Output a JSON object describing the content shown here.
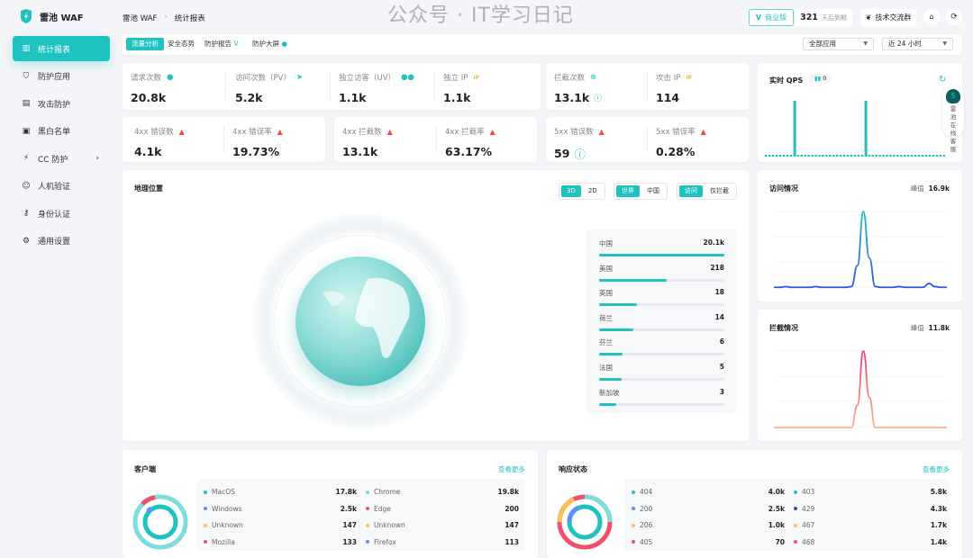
{
  "app": {
    "name": "雷池 WAF",
    "accent": "#1ec3bf"
  },
  "breadcrumb": [
    "雷池 WAF",
    "统计报表"
  ],
  "header": {
    "edition": "商业版",
    "days": "321",
    "days_label": "天后到期",
    "group": "技术交流群"
  },
  "sidebar": {
    "items": [
      {
        "label": "统计报表",
        "icon": "bar-chart-icon",
        "active": true
      },
      {
        "label": "防护应用",
        "icon": "shield-icon"
      },
      {
        "label": "攻击防护",
        "icon": "document-icon"
      },
      {
        "label": "黑白名单",
        "icon": "list-icon"
      },
      {
        "label": "CC 防护",
        "icon": "cc-icon"
      },
      {
        "label": "人机验证",
        "icon": "robot-icon"
      },
      {
        "label": "身份认证",
        "icon": "key-icon"
      },
      {
        "label": "通用设置",
        "icon": "gear-icon"
      }
    ]
  },
  "tabs": [
    "流量分析",
    "安全态势",
    "防护报告",
    "防护大屏"
  ],
  "filters": {
    "app": "全部应用",
    "range": "近 24 小时"
  },
  "stats": {
    "requests": {
      "label": "请求次数",
      "value": "20.8k"
    },
    "pv": {
      "label": "访问次数（PV）",
      "value": "5.2k"
    },
    "uv": {
      "label": "独立访客（UV）",
      "value": "1.1k"
    },
    "ip": {
      "label": "独立 IP",
      "value": "1.1k"
    },
    "blocked": {
      "label": "拦截次数",
      "value": "13.1k"
    },
    "attack_ip": {
      "label": "攻击 IP",
      "value": "114"
    },
    "e4xx": {
      "label": "4xx 错误数",
      "value": "4.1k"
    },
    "e4xx_rate": {
      "label": "4xx 错误率",
      "value": "19.73%"
    },
    "b4xx": {
      "label": "4xx 拦截数",
      "value": "13.1k"
    },
    "b4xx_rate": {
      "label": "4xx 拦截率",
      "value": "63.17%"
    },
    "e5xx": {
      "label": "5xx 错误数",
      "value": "59"
    },
    "e5xx_rate": {
      "label": "5xx 错误率",
      "value": "0.28%"
    }
  },
  "qps": {
    "title": "实时 QPS",
    "value": "0",
    "bars": [
      0,
      0,
      0,
      0,
      0,
      0,
      0,
      0,
      1,
      0,
      0,
      0,
      0,
      0,
      0,
      0,
      0,
      0,
      0,
      0,
      0,
      0,
      0,
      0,
      0,
      0,
      0,
      0,
      1,
      0,
      0,
      0,
      0,
      0,
      0,
      0,
      0,
      0,
      0,
      0,
      0,
      0,
      0,
      0,
      0,
      0,
      0,
      0,
      0,
      0,
      0
    ]
  },
  "support": {
    "label": "雷池在线客服"
  },
  "geo": {
    "title": "地理位置",
    "seg1": [
      "3D",
      "2D"
    ],
    "seg2": [
      "世界",
      "中国"
    ],
    "seg3": [
      "访问",
      "仅拦截"
    ],
    "rows": [
      {
        "name": "中国",
        "value": "20.1k",
        "pct": 100
      },
      {
        "name": "美国",
        "value": "218",
        "pct": 54
      },
      {
        "name": "英国",
        "value": "18",
        "pct": 30
      },
      {
        "name": "荷兰",
        "value": "14",
        "pct": 27
      },
      {
        "name": "芬兰",
        "value": "6",
        "pct": 19
      },
      {
        "name": "法国",
        "value": "5",
        "pct": 18
      },
      {
        "name": "新加坡",
        "value": "3",
        "pct": 14
      }
    ]
  },
  "visits": {
    "title": "访问情况",
    "peak_label": "峰值",
    "peak": "16.9k",
    "series": [
      2,
      2,
      3,
      2,
      2,
      2,
      2,
      3,
      2,
      2,
      2,
      2,
      2,
      3,
      30,
      100,
      40,
      3,
      2,
      2,
      2,
      3,
      2,
      2,
      2,
      2,
      7,
      3,
      2,
      2
    ]
  },
  "blocks": {
    "title": "拦截情况",
    "peak_label": "峰值",
    "peak": "11.8k",
    "series": [
      1,
      1,
      1,
      1,
      1,
      1,
      1,
      1,
      1,
      1,
      1,
      1,
      1,
      1,
      30,
      100,
      40,
      1,
      1,
      1,
      1,
      1,
      1,
      1,
      1,
      1,
      1,
      1,
      1,
      1
    ]
  },
  "clients": {
    "title": "客户端",
    "more": "查看更多",
    "left": [
      {
        "name": "MacOS",
        "value": "17.8k",
        "color": "#1ec3bf"
      },
      {
        "name": "Windows",
        "value": "2.5k",
        "color": "#5b8ff9"
      },
      {
        "name": "Unknown",
        "value": "147",
        "color": "#f6c452"
      },
      {
        "name": "Mozilla",
        "value": "133",
        "color": "#f0506e"
      }
    ],
    "right": [
      {
        "name": "Chrome",
        "value": "19.8k",
        "color": "#7fdcdc"
      },
      {
        "name": "Edge",
        "value": "200",
        "color": "#f0506e"
      },
      {
        "name": "Unknown",
        "value": "147",
        "color": "#f6c452"
      },
      {
        "name": "Firefox",
        "value": "113",
        "color": "#5b8ff9"
      }
    ]
  },
  "status": {
    "title": "响应状态",
    "more": "查看更多",
    "left": [
      {
        "name": "404",
        "value": "4.0k",
        "color": "#1ec3bf"
      },
      {
        "name": "200",
        "value": "2.5k",
        "color": "#5b8ff9"
      },
      {
        "name": "206",
        "value": "1.0k",
        "color": "#f6c452"
      },
      {
        "name": "405",
        "value": "70",
        "color": "#f0506e"
      }
    ],
    "right": [
      {
        "name": "403",
        "value": "5.8k",
        "color": "#1ec3bf"
      },
      {
        "name": "429",
        "value": "4.3k",
        "color": "#3b4a9a"
      },
      {
        "name": "467",
        "value": "1.7k",
        "color": "#f6c452"
      },
      {
        "name": "468",
        "value": "1.4k",
        "color": "#f0506e"
      }
    ]
  },
  "watermark": "公众号 · IT学习日记"
}
